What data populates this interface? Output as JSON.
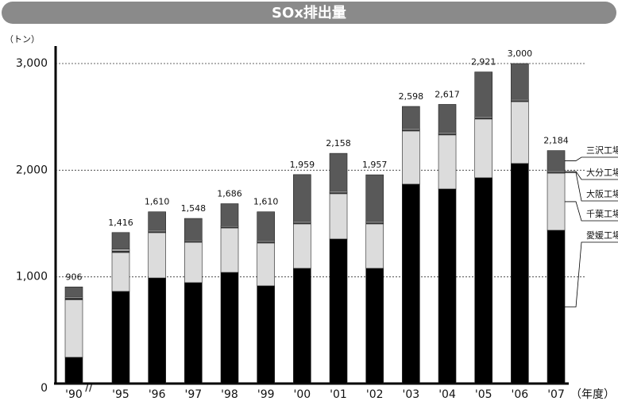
{
  "chart_data": {
    "type": "stacked_bar",
    "title": "SOx排出量",
    "y_unit": "（トン）",
    "x_unit": "（年度）",
    "categories": [
      "'90",
      "'95",
      "'96",
      "'97",
      "'98",
      "'99",
      "'00",
      "'01",
      "'02",
      "'03",
      "'04",
      "'05",
      "'06",
      "'07"
    ],
    "series": [
      {
        "name": "愛媛工場",
        "color": "#000000",
        "values": [
          246,
          864,
          990,
          946,
          1042,
          916,
          1080,
          1355,
          1080,
          1869,
          1824,
          1929,
          2063,
          1437
        ]
      },
      {
        "name": "千葉工場",
        "color": "#dcdcdc",
        "values": [
          540,
          365,
          425,
          379,
          417,
          402,
          417,
          425,
          417,
          499,
          507,
          551,
          580,
          536
        ]
      },
      {
        "name": "大阪工場",
        "color": "#3a3a3a",
        "values": [
          15,
          15,
          10,
          10,
          10,
          10,
          10,
          10,
          10,
          10,
          10,
          10,
          10,
          10
        ]
      },
      {
        "name": "大分工場",
        "color": "#f0f0f0",
        "values": [
          10,
          15,
          10,
          10,
          10,
          10,
          10,
          10,
          10,
          10,
          10,
          10,
          10,
          10
        ]
      },
      {
        "name": "三沢工場",
        "color": "#595959",
        "values": [
          95,
          157,
          175,
          203,
          207,
          272,
          442,
          358,
          440,
          210,
          266,
          421,
          337,
          191
        ]
      }
    ],
    "total_labels": [
      "906",
      "1,416",
      "1,610",
      "1,548",
      "1,686",
      "1,610",
      "1,959",
      "2,158",
      "1,957",
      "2,598",
      "2,617",
      "2,921",
      "3,000",
      "2,184"
    ],
    "ylim": [
      0,
      3000
    ],
    "yticks": [
      0,
      {
        "value": 1000,
        "label": "1,000"
      },
      {
        "value": 2000,
        "label": "2,000"
      },
      {
        "value": 3000,
        "label": "3,000"
      }
    ],
    "grid": true
  }
}
